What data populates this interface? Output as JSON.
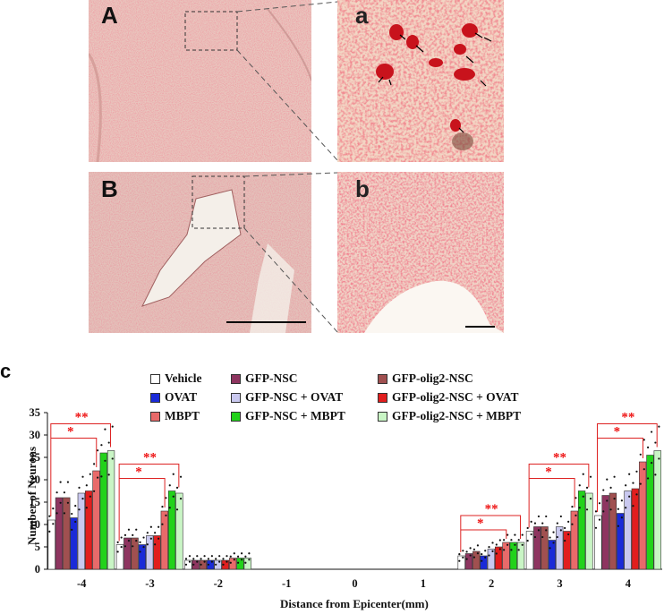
{
  "figure": {
    "panel_labels": [
      "A",
      "a",
      "B",
      "b",
      "c"
    ]
  },
  "legend": [
    {
      "label": "Vehicle",
      "color": "#ffffff"
    },
    {
      "label": "GFP-NSC",
      "color": "#8e3560"
    },
    {
      "label": "GFP-olig2-NSC",
      "color": "#a05050"
    },
    {
      "label": "OVAT",
      "color": "#1a2ad8"
    },
    {
      "label": "GFP-NSC + OVAT",
      "color": "#c9c8ef"
    },
    {
      "label": "GFP-olig2-NSC + OVAT",
      "color": "#e11e1e"
    },
    {
      "label": "MBPT",
      "color": "#e86a6a"
    },
    {
      "label": "GFP-NSC + MBPT",
      "color": "#22d21a"
    },
    {
      "label": "GFP-olig2-NSC + MBPT",
      "color": "#c9f5c5"
    }
  ],
  "chart_data": {
    "type": "bar",
    "xlabel": "Distance from Epicenter(mm)",
    "ylabel": "Number of Neurons",
    "ylim": [
      0,
      35
    ],
    "yticks": [
      "0",
      "5",
      "10",
      "15",
      "20",
      "25",
      "30",
      "35"
    ],
    "categories": [
      "-4",
      "-3",
      "-2",
      "-1",
      "0",
      "1",
      "2",
      "3",
      "4"
    ],
    "series": [
      {
        "name": "Vehicle",
        "values": [
          11,
          5.5,
          2,
          0,
          0,
          0,
          3,
          8.5,
          12
        ]
      },
      {
        "name": "GFP-NSC",
        "values": [
          16,
          7,
          2,
          0,
          0,
          0,
          3.5,
          9.5,
          16.5
        ]
      },
      {
        "name": "GFP-olig2-NSC",
        "values": [
          16,
          7,
          2,
          0,
          0,
          0,
          4,
          9.5,
          17
        ]
      },
      {
        "name": "OVAT",
        "values": [
          11.5,
          5.5,
          2,
          0,
          0,
          0,
          3,
          6.5,
          12.5
        ]
      },
      {
        "name": "GFP-NSC + OVAT",
        "values": [
          17,
          7.5,
          2,
          0,
          0,
          0,
          4.5,
          9.5,
          17.5
        ]
      },
      {
        "name": "GFP-olig2-NSC + OVAT",
        "values": [
          17.5,
          7.5,
          2,
          0,
          0,
          0,
          5,
          8.5,
          18
        ]
      },
      {
        "name": "MBPT",
        "values": [
          22,
          13,
          2.5,
          0,
          0,
          0,
          6,
          13,
          24
        ]
      },
      {
        "name": "GFP-NSC + MBPT",
        "values": [
          26,
          17.5,
          2.5,
          0,
          0,
          0,
          6,
          17.5,
          25.5
        ]
      },
      {
        "name": "GFP-olig2-NSC + MBPT",
        "values": [
          26.5,
          17,
          2.5,
          0,
          0,
          0,
          6,
          17,
          26.5
        ]
      }
    ],
    "significance_marks": [
      "*",
      "**"
    ]
  }
}
